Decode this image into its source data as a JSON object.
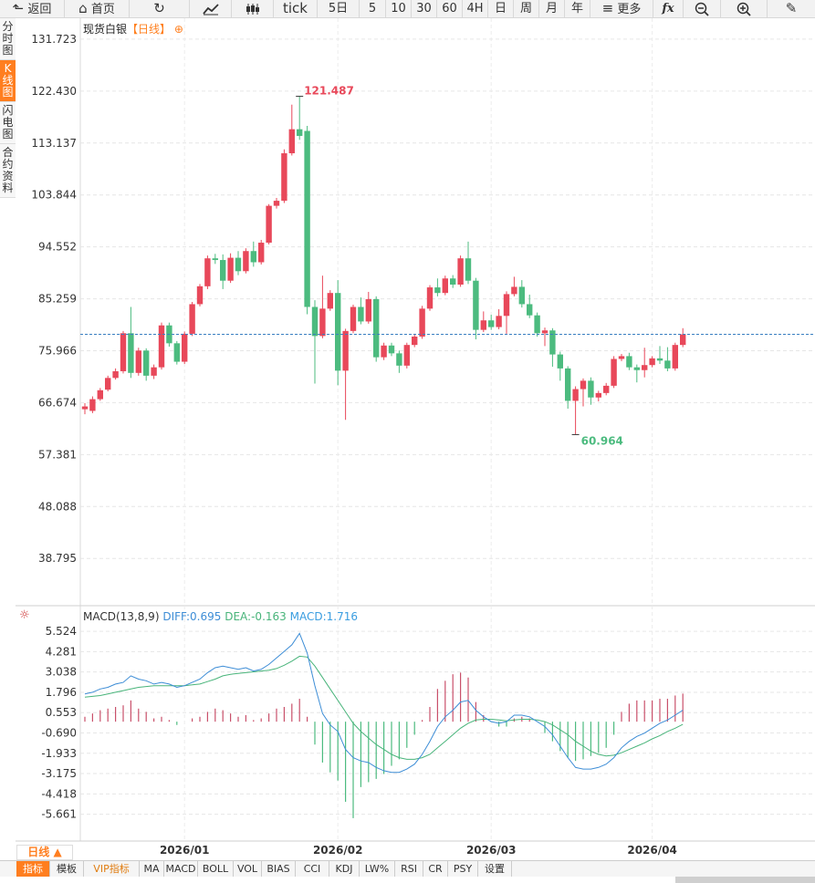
{
  "toolbar": {
    "items": [
      {
        "id": "back",
        "label": "返回",
        "icon": "arrow-left-icon"
      },
      {
        "id": "home",
        "label": "首页",
        "icon": "home-icon"
      },
      {
        "id": "refresh",
        "label": "",
        "icon": "refresh-icon"
      },
      {
        "id": "chart-type",
        "label": "",
        "icon": "line-chart-icon"
      },
      {
        "id": "candle-type",
        "label": "",
        "icon": "candlestick-icon"
      },
      {
        "id": "tick",
        "label": "tick"
      },
      {
        "id": "5d",
        "label": "5日"
      },
      {
        "id": "5",
        "label": "5"
      },
      {
        "id": "10",
        "label": "10"
      },
      {
        "id": "30",
        "label": "30"
      },
      {
        "id": "60",
        "label": "60"
      },
      {
        "id": "4h",
        "label": "4H"
      },
      {
        "id": "day",
        "label": "日"
      },
      {
        "id": "week",
        "label": "周"
      },
      {
        "id": "month",
        "label": "月"
      },
      {
        "id": "year",
        "label": "年"
      },
      {
        "id": "more",
        "label": "更多",
        "icon": "menu-icon"
      },
      {
        "id": "fx",
        "label": "",
        "icon": "function-icon"
      },
      {
        "id": "zoom-out",
        "label": "",
        "icon": "zoom-out-icon"
      },
      {
        "id": "zoom-in",
        "label": "",
        "icon": "zoom-in-icon"
      },
      {
        "id": "draw",
        "label": "",
        "icon": "pencil-icon"
      }
    ]
  },
  "side_tabs": [
    {
      "label": "分时图",
      "active": false
    },
    {
      "label": "K线图",
      "active": true
    },
    {
      "label": "闪电图",
      "active": false
    },
    {
      "label": "合约资料",
      "active": false
    }
  ],
  "header": {
    "name": "现货白银",
    "period": "【日线】",
    "icon": "settings-dot-icon"
  },
  "macd_header": {
    "label": "MACD(13,8,9)",
    "diff": "DIFF:0.695",
    "dea": "DEA:-0.163",
    "macd": "MACD:1.716"
  },
  "period_button": "日线 ▲",
  "bottom_tabs": [
    {
      "label": "指标",
      "active": true
    },
    {
      "label": "模板"
    },
    {
      "label": "VIP指标",
      "vip": true
    },
    {
      "label": "MA"
    },
    {
      "label": "MACD"
    },
    {
      "label": "BOLL"
    },
    {
      "label": "VOL"
    },
    {
      "label": "BIAS"
    },
    {
      "label": "CCI"
    },
    {
      "label": "KDJ"
    },
    {
      "label": "LW%"
    },
    {
      "label": "RSI"
    },
    {
      "label": "CR"
    },
    {
      "label": "PSY"
    },
    {
      "label": "设置"
    }
  ],
  "colors": {
    "up": "#e8485a",
    "down": "#4cbb7f",
    "diff": "#3d8dd6",
    "dea": "#48b47a",
    "grid": "#e6e6e6",
    "accent": "#ff7e1f"
  },
  "chart_data": [
    {
      "type": "candlestick",
      "title": "现货白银",
      "ylim": [
        31.0,
        133.5
      ],
      "y_ticks": [
        "131.723",
        "122.430",
        "113.137",
        "103.844",
        "94.552",
        "85.259",
        "75.966",
        "66.674",
        "57.381",
        "48.088",
        "38.795"
      ],
      "y_tick_values": [
        131.723,
        122.43,
        113.137,
        103.844,
        94.552,
        85.259,
        75.966,
        66.674,
        57.381,
        48.088,
        38.795
      ],
      "x_labels": [
        {
          "label": "2026/01",
          "index": 13
        },
        {
          "label": "2026/02",
          "index": 33
        },
        {
          "label": "2026/03",
          "index": 53
        },
        {
          "label": "2026/04",
          "index": 74
        }
      ],
      "current_price": 78.9,
      "annotations": [
        {
          "text": "121.487",
          "index": 28,
          "value": 121.487,
          "kind": "high"
        },
        {
          "text": "60.964",
          "index": 64,
          "value": 60.964,
          "kind": "low"
        }
      ],
      "candles": [
        [
          65.5,
          66.0,
          64.6,
          66.6
        ],
        [
          65.2,
          67.3,
          64.8,
          67.8
        ],
        [
          67.3,
          68.9,
          67.0,
          69.3
        ],
        [
          69.0,
          71.1,
          68.7,
          71.5
        ],
        [
          71.1,
          72.3,
          70.8,
          72.8
        ],
        [
          72.3,
          79.1,
          71.9,
          79.5
        ],
        [
          79.1,
          72.0,
          71.1,
          83.8
        ],
        [
          72.0,
          76.0,
          71.5,
          76.5
        ],
        [
          76.0,
          71.5,
          70.6,
          76.4
        ],
        [
          71.5,
          73.0,
          70.9,
          73.5
        ],
        [
          73.0,
          80.5,
          72.6,
          81.0
        ],
        [
          80.5,
          77.3,
          76.7,
          81.0
        ],
        [
          77.3,
          74.0,
          73.5,
          77.7
        ],
        [
          74.0,
          79.0,
          73.6,
          79.4
        ],
        [
          79.0,
          84.3,
          78.6,
          84.7
        ],
        [
          84.3,
          87.5,
          83.9,
          87.9
        ],
        [
          87.5,
          92.5,
          87.0,
          93.0
        ],
        [
          92.5,
          92.2,
          91.5,
          93.3
        ],
        [
          92.2,
          88.5,
          87.0,
          93.2
        ],
        [
          88.5,
          92.6,
          88.1,
          93.4
        ],
        [
          92.6,
          90.2,
          89.5,
          93.8
        ],
        [
          90.2,
          93.8,
          89.8,
          94.3
        ],
        [
          93.8,
          91.8,
          91.0,
          95.5
        ],
        [
          91.8,
          95.3,
          91.4,
          95.8
        ],
        [
          95.3,
          101.9,
          95.0,
          102.2
        ],
        [
          101.9,
          102.8,
          101.4,
          103.3
        ],
        [
          102.8,
          111.3,
          102.4,
          112.0
        ],
        [
          111.3,
          115.6,
          110.9,
          120.0
        ],
        [
          115.6,
          114.4,
          113.7,
          121.487
        ],
        [
          115.3,
          83.8,
          82.5,
          116.2
        ],
        [
          83.8,
          78.6,
          70.1,
          85.0
        ],
        [
          78.6,
          83.5,
          78.2,
          89.4
        ],
        [
          83.5,
          86.3,
          83.1,
          86.8
        ],
        [
          86.3,
          72.4,
          69.8,
          88.6
        ],
        [
          72.4,
          79.5,
          63.6,
          79.9
        ],
        [
          79.5,
          83.8,
          79.1,
          84.2
        ],
        [
          83.8,
          81.2,
          80.7,
          85.5
        ],
        [
          81.2,
          85.2,
          80.8,
          86.5
        ],
        [
          85.2,
          74.8,
          74.0,
          85.7
        ],
        [
          74.8,
          76.9,
          74.3,
          77.4
        ],
        [
          76.9,
          75.5,
          75.0,
          77.4
        ],
        [
          75.5,
          73.3,
          72.0,
          76.0
        ],
        [
          73.3,
          77.0,
          72.8,
          77.4
        ],
        [
          77.0,
          78.5,
          76.6,
          79.0
        ],
        [
          78.5,
          83.5,
          78.1,
          84.0
        ],
        [
          83.5,
          87.3,
          83.1,
          87.7
        ],
        [
          87.3,
          86.3,
          85.7,
          88.9
        ],
        [
          86.3,
          88.9,
          85.9,
          89.4
        ],
        [
          88.9,
          87.8,
          87.2,
          89.5
        ],
        [
          87.8,
          92.5,
          87.4,
          93.0
        ],
        [
          92.5,
          88.5,
          87.9,
          95.5
        ],
        [
          88.5,
          79.7,
          78.0,
          89.0
        ],
        [
          79.7,
          81.4,
          79.3,
          83.0
        ],
        [
          81.4,
          80.2,
          79.7,
          82.4
        ],
        [
          80.2,
          82.2,
          79.8,
          83.4
        ],
        [
          82.2,
          86.1,
          79.0,
          86.6
        ],
        [
          86.1,
          87.4,
          85.7,
          89.2
        ],
        [
          87.4,
          84.3,
          83.7,
          88.6
        ],
        [
          84.3,
          82.3,
          81.8,
          86.0
        ],
        [
          82.3,
          79.1,
          78.5,
          82.8
        ],
        [
          79.1,
          79.6,
          76.8,
          80.1
        ],
        [
          79.6,
          75.3,
          73.1,
          80.0
        ],
        [
          75.3,
          72.8,
          70.6,
          75.8
        ],
        [
          72.8,
          67.0,
          65.6,
          73.2
        ],
        [
          67.0,
          69.1,
          60.964,
          69.6
        ],
        [
          69.1,
          70.6,
          66.0,
          71.0
        ],
        [
          70.6,
          67.6,
          66.3,
          71.2
        ],
        [
          67.6,
          68.4,
          66.9,
          68.8
        ],
        [
          68.4,
          69.7,
          68.0,
          70.2
        ],
        [
          69.7,
          74.5,
          69.3,
          75.0
        ],
        [
          74.5,
          75.0,
          74.1,
          75.4
        ],
        [
          75.0,
          73.0,
          72.5,
          75.6
        ],
        [
          73.0,
          72.5,
          70.3,
          73.5
        ],
        [
          72.5,
          73.4,
          71.2,
          76.5
        ],
        [
          73.4,
          74.6,
          73.0,
          75.0
        ],
        [
          74.6,
          74.2,
          73.6,
          76.8
        ],
        [
          74.2,
          72.8,
          72.3,
          76.6
        ],
        [
          72.8,
          77.0,
          72.4,
          77.4
        ],
        [
          77.0,
          78.9,
          76.6,
          80.0
        ]
      ]
    },
    {
      "type": "macd",
      "title": "MACD(13,8,9)",
      "ylim": [
        -7.3,
        6.2
      ],
      "y_ticks": [
        "5.524",
        "4.281",
        "3.038",
        "1.796",
        "0.553",
        "-0.690",
        "-1.933",
        "-3.175",
        "-4.418",
        "-5.661"
      ],
      "y_tick_values": [
        5.524,
        4.281,
        3.038,
        1.796,
        0.553,
        -0.69,
        -1.933,
        -3.175,
        -4.418,
        -5.661
      ],
      "diff": [
        1.7,
        1.8,
        2.0,
        2.1,
        2.3,
        2.4,
        2.8,
        2.6,
        2.5,
        2.3,
        2.4,
        2.3,
        2.1,
        2.2,
        2.4,
        2.6,
        3.0,
        3.3,
        3.4,
        3.3,
        3.2,
        3.3,
        3.1,
        3.2,
        3.5,
        3.9,
        4.3,
        4.7,
        5.4,
        4.2,
        2.2,
        0.5,
        -0.2,
        -0.6,
        -1.7,
        -2.2,
        -2.4,
        -2.5,
        -2.8,
        -3.0,
        -3.1,
        -3.1,
        -2.9,
        -2.6,
        -2.0,
        -1.2,
        -0.3,
        0.3,
        0.7,
        1.2,
        1.3,
        0.7,
        0.3,
        0.0,
        -0.1,
        0.0,
        0.4,
        0.4,
        0.3,
        0.0,
        -0.3,
        -0.8,
        -1.5,
        -2.2,
        -2.8,
        -2.9,
        -2.9,
        -2.8,
        -2.6,
        -2.2,
        -1.6,
        -1.2,
        -0.9,
        -0.7,
        -0.4,
        -0.1,
        0.1,
        0.4,
        0.7
      ],
      "dea": [
        1.5,
        1.55,
        1.6,
        1.7,
        1.8,
        1.9,
        2.0,
        2.1,
        2.15,
        2.2,
        2.2,
        2.2,
        2.2,
        2.2,
        2.25,
        2.3,
        2.45,
        2.6,
        2.8,
        2.9,
        2.95,
        3.0,
        3.05,
        3.1,
        3.15,
        3.25,
        3.45,
        3.7,
        4.0,
        3.95,
        3.4,
        2.7,
        2.0,
        1.3,
        0.6,
        -0.1,
        -0.6,
        -1.0,
        -1.4,
        -1.7,
        -2.0,
        -2.2,
        -2.3,
        -2.3,
        -2.2,
        -2.0,
        -1.6,
        -1.2,
        -0.8,
        -0.4,
        -0.1,
        0.1,
        0.15,
        0.15,
        0.1,
        0.05,
        0.1,
        0.15,
        0.15,
        0.1,
        0.0,
        -0.2,
        -0.5,
        -0.8,
        -1.2,
        -1.5,
        -1.8,
        -2.0,
        -2.1,
        -2.05,
        -1.9,
        -1.7,
        -1.5,
        -1.3,
        -1.05,
        -0.85,
        -0.6,
        -0.4,
        -0.163
      ],
      "macd_hist": [
        0.3,
        0.5,
        0.7,
        0.8,
        0.9,
        1.0,
        1.3,
        0.8,
        0.6,
        0.2,
        0.3,
        0.1,
        -0.2,
        0.0,
        0.2,
        0.3,
        0.6,
        0.8,
        0.7,
        0.5,
        0.3,
        0.4,
        0.1,
        0.2,
        0.5,
        0.8,
        0.9,
        1.1,
        1.4,
        0.3,
        -1.4,
        -2.5,
        -3.1,
        -3.6,
        -4.9,
        -5.9,
        -4.0,
        -3.7,
        -3.5,
        -3.2,
        -2.7,
        -2.3,
        -1.6,
        -0.8,
        0.1,
        0.9,
        2.0,
        2.5,
        2.9,
        3.0,
        2.7,
        1.2,
        0.4,
        0.0,
        -0.3,
        -0.3,
        0.2,
        0.3,
        0.2,
        0.0,
        -0.7,
        -1.2,
        -1.8,
        -2.2,
        -2.4,
        -2.3,
        -2.1,
        -1.9,
        -1.6,
        -0.8,
        0.6,
        1.1,
        1.3,
        1.3,
        1.3,
        1.4,
        1.4,
        1.6,
        1.716
      ]
    }
  ]
}
